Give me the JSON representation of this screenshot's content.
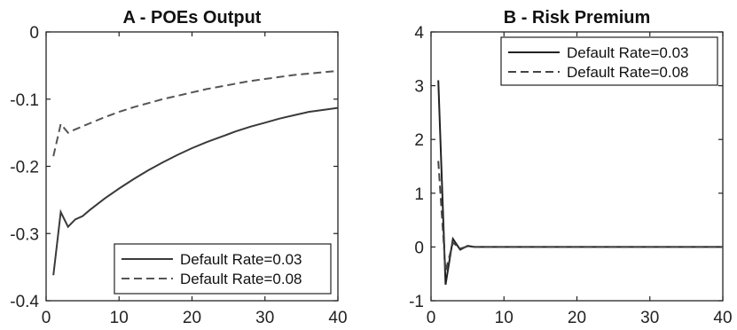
{
  "chart_data": [
    {
      "type": "line",
      "title": "A - POEs Output",
      "xlabel": "",
      "ylabel": "",
      "xlim": [
        0,
        40
      ],
      "ylim": [
        -0.4,
        0
      ],
      "xticks": [
        0,
        10,
        20,
        30,
        40
      ],
      "yticks": [
        0,
        -0.1,
        -0.2,
        -0.3,
        -0.4
      ],
      "xtick_labels": [
        "0",
        "10",
        "20",
        "30",
        "40"
      ],
      "ytick_labels": [
        "0",
        "-0.1",
        "-0.2",
        "-0.3",
        "-0.4"
      ],
      "legend_position": "bottom-right",
      "grid": false,
      "series": [
        {
          "name": "Default Rate=0.03",
          "style": "solid",
          "color": "#3a3a3a",
          "x": [
            1,
            2,
            3,
            4,
            5,
            6,
            8,
            10,
            12,
            14,
            16,
            18,
            20,
            22,
            24,
            26,
            28,
            30,
            32,
            34,
            36,
            38,
            40
          ],
          "y": [
            -0.362,
            -0.268,
            -0.29,
            -0.279,
            -0.274,
            -0.265,
            -0.248,
            -0.233,
            -0.219,
            -0.206,
            -0.194,
            -0.183,
            -0.173,
            -0.164,
            -0.156,
            -0.148,
            -0.141,
            -0.135,
            -0.129,
            -0.124,
            -0.119,
            -0.116,
            -0.113
          ]
        },
        {
          "name": "Default Rate=0.08",
          "style": "dashed",
          "color": "#555555",
          "x": [
            1,
            2,
            3,
            4,
            6,
            8,
            10,
            12,
            14,
            16,
            18,
            20,
            22,
            24,
            26,
            28,
            30,
            32,
            34,
            36,
            38,
            40
          ],
          "y": [
            -0.185,
            -0.137,
            -0.15,
            -0.145,
            -0.136,
            -0.127,
            -0.119,
            -0.112,
            -0.106,
            -0.1,
            -0.095,
            -0.09,
            -0.085,
            -0.081,
            -0.077,
            -0.073,
            -0.07,
            -0.067,
            -0.064,
            -0.062,
            -0.06,
            -0.058
          ]
        }
      ]
    },
    {
      "type": "line",
      "title": "B - Risk Premium",
      "xlabel": "",
      "ylabel": "",
      "xlim": [
        0,
        40
      ],
      "ylim": [
        -1,
        4
      ],
      "xticks": [
        0,
        10,
        20,
        30,
        40
      ],
      "yticks": [
        4,
        3,
        2,
        1,
        0,
        -1
      ],
      "xtick_labels": [
        "0",
        "10",
        "20",
        "30",
        "40"
      ],
      "ytick_labels": [
        "4",
        "3",
        "2",
        "1",
        "0",
        "-1"
      ],
      "legend_position": "top-right",
      "grid": false,
      "series": [
        {
          "name": "Default Rate=0.03",
          "style": "solid",
          "color": "#222222",
          "x": [
            1,
            2,
            3,
            4,
            5,
            6,
            8,
            10,
            20,
            30,
            40
          ],
          "y": [
            3.1,
            -0.7,
            0.15,
            -0.05,
            0.02,
            0.0,
            0.0,
            0.0,
            0.0,
            0.0,
            0.0
          ]
        },
        {
          "name": "Default Rate=0.08",
          "style": "dashed",
          "color": "#444444",
          "x": [
            1,
            2,
            3,
            4,
            5,
            6,
            8,
            10,
            20,
            30,
            40
          ],
          "y": [
            1.6,
            -0.45,
            0.08,
            -0.03,
            0.01,
            0.0,
            0.0,
            0.0,
            0.0,
            0.0,
            0.0
          ]
        }
      ]
    }
  ]
}
